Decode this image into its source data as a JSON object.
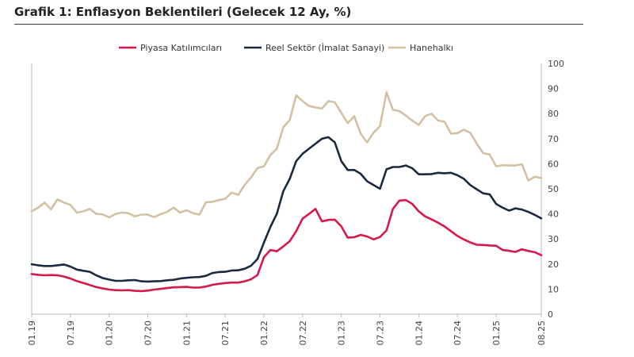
{
  "chart_data": {
    "type": "line",
    "title": "Grafik 1: Enflasyon Beklentileri (Gelecek 12 Ay, %)",
    "xlabel": "",
    "ylabel": "",
    "ylim": [
      0,
      100
    ],
    "yticks": [
      0,
      10,
      20,
      30,
      40,
      50,
      60,
      70,
      80,
      90,
      100
    ],
    "grid": false,
    "legend_position": "top",
    "x_tick_labels": [
      "01.19",
      "07.19",
      "01.20",
      "07.20",
      "01.21",
      "07.21",
      "01.22",
      "07.22",
      "01.23",
      "07.23",
      "01.24",
      "07.24",
      "01.25",
      "08.25"
    ],
    "x_tick_indices": [
      0,
      6,
      12,
      18,
      24,
      30,
      36,
      42,
      48,
      54,
      60,
      66,
      72,
      79
    ],
    "x_count": 80,
    "series": [
      {
        "name": "Piyasa Katılımcıları",
        "color": "#d6184a",
        "values": [
          16,
          15.7,
          15.5,
          15.6,
          15.5,
          15,
          14.2,
          13.2,
          12.4,
          11.6,
          10.8,
          10.3,
          9.8,
          9.6,
          9.5,
          9.6,
          9.3,
          9.2,
          9.4,
          9.8,
          10.1,
          10.4,
          10.7,
          10.8,
          10.9,
          10.6,
          10.6,
          11,
          11.7,
          12.1,
          12.4,
          12.6,
          12.6,
          13.1,
          13.9,
          15.6,
          22.7,
          25.6,
          25.1,
          27,
          29.1,
          33.1,
          38.1,
          40,
          42,
          37,
          37.6,
          37.7,
          35,
          30.5,
          30.7,
          31.6,
          31,
          29.8,
          30.8,
          33.4,
          42,
          45.3,
          45.5,
          44,
          41,
          39,
          37.8,
          36.5,
          35,
          33.1,
          31.2,
          29.8,
          28.6,
          27.7,
          27.6,
          27.4,
          27.3,
          25.6,
          25.3,
          24.8,
          25.9,
          25.2,
          24.7,
          23.5
        ]
      },
      {
        "name": "Reel Sektör (İmalat Sanayi)",
        "color": "#1b2a3e",
        "values": [
          19.9,
          19.5,
          19.2,
          19.2,
          19.5,
          19.8,
          19,
          17.8,
          17.3,
          16.9,
          15.5,
          14.4,
          13.8,
          13.3,
          13.3,
          13.5,
          13.6,
          13.1,
          13,
          13.1,
          13.2,
          13.5,
          13.7,
          14.2,
          14.5,
          14.7,
          14.8,
          15.3,
          16.4,
          16.8,
          16.9,
          17.4,
          17.5,
          18.1,
          19.3,
          22,
          28.5,
          34.8,
          40,
          49,
          54,
          61,
          64,
          66,
          68,
          70,
          70.6,
          68.5,
          61,
          57.5,
          57.5,
          56,
          53,
          51.5,
          50,
          57.8,
          58.7,
          58.7,
          59.3,
          58.2,
          55.8,
          55.8,
          55.9,
          56.4,
          56.2,
          56.4,
          55.4,
          54,
          51.5,
          49.8,
          48.2,
          47.8,
          44,
          42.5,
          41.3,
          42.2,
          41.7,
          40.8,
          39.6,
          38.2
        ]
      },
      {
        "name": "Hanehalkı",
        "color": "#d4c1a3",
        "values": [
          41,
          42.5,
          44.5,
          41.8,
          45.8,
          44.5,
          43.6,
          40.5,
          41,
          42,
          40,
          39.8,
          38.6,
          40,
          40.5,
          40.3,
          39,
          39.7,
          39.7,
          38.7,
          39.9,
          40.8,
          42.5,
          40.5,
          41.5,
          40.3,
          39.7,
          44.6,
          44.8,
          45.5,
          46,
          48.5,
          47.6,
          51.5,
          54.5,
          58.3,
          59,
          63.5,
          66,
          74.5,
          77.5,
          87.3,
          85,
          83,
          82.5,
          82,
          85,
          84.5,
          80.3,
          76.2,
          79,
          72,
          68.5,
          72.4,
          75,
          88.5,
          81.5,
          81,
          79.2,
          77.2,
          75.5,
          79,
          80,
          77.2,
          76.8,
          72,
          72.2,
          73.6,
          72.3,
          68,
          64.2,
          63.7,
          59,
          59.4,
          59.3,
          59.3,
          59.8,
          53.3,
          54.8,
          54.3
        ]
      }
    ]
  }
}
